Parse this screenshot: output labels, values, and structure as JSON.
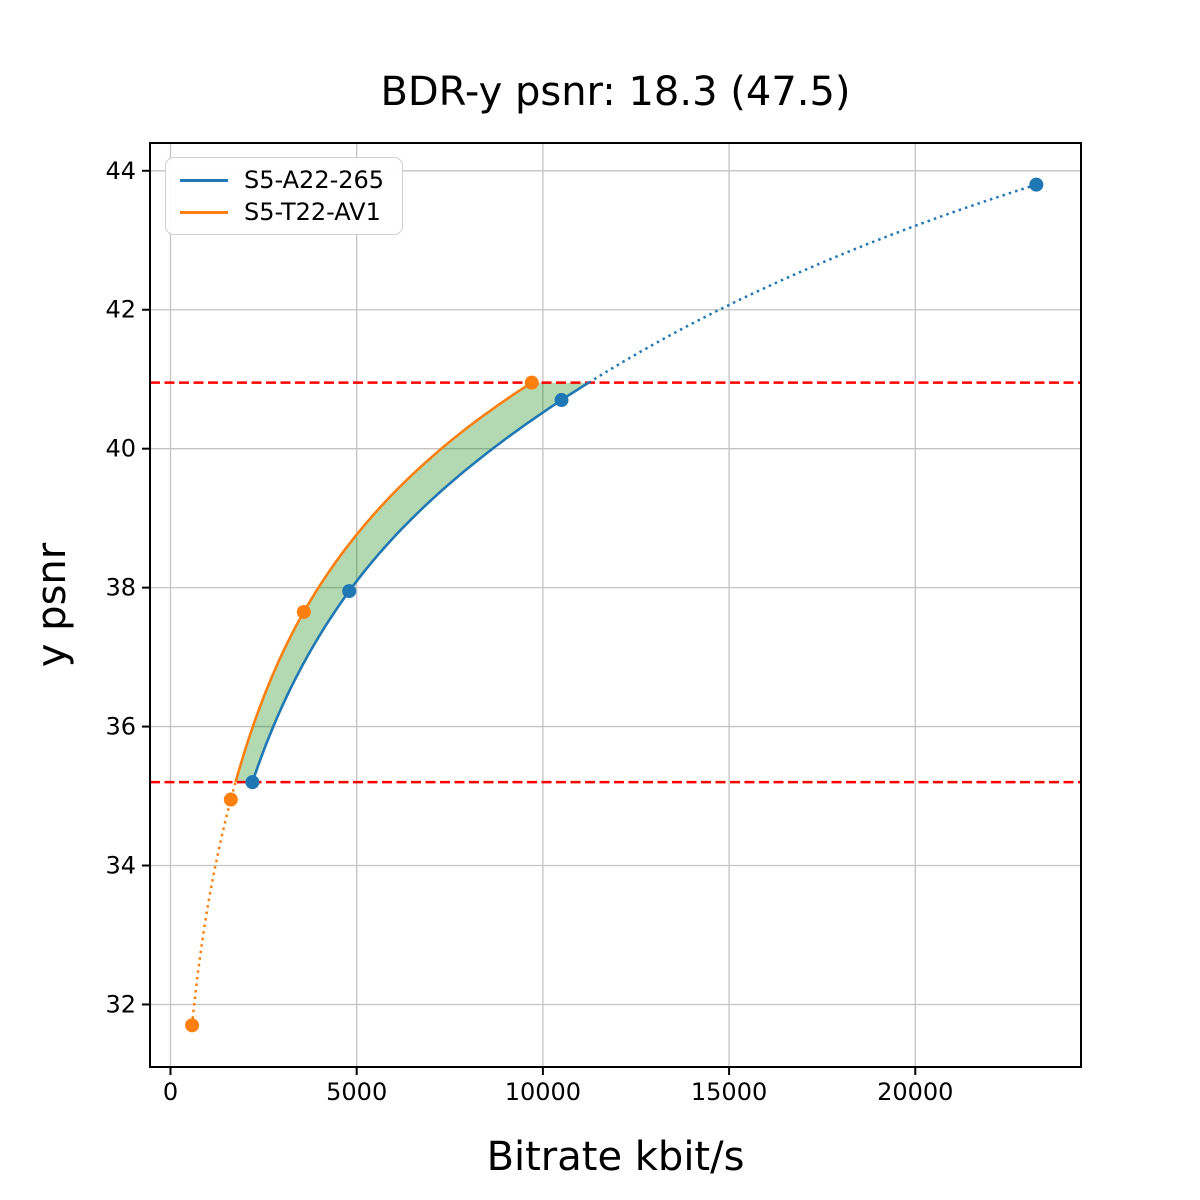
{
  "figure": {
    "title": "BDR-y psnr: 18.3 (47.5)",
    "xlabel": "Bitrate kbit/s",
    "ylabel": "y psnr"
  },
  "chart_data": {
    "type": "line",
    "title": "BDR-y psnr: 18.3 (47.5)",
    "xlabel": "Bitrate kbit/s",
    "ylabel": "y psnr",
    "xlim": [
      -550,
      24450
    ],
    "ylim": [
      31.1,
      44.4
    ],
    "x_ticks": [
      0,
      5000,
      10000,
      15000,
      20000
    ],
    "y_ticks": [
      32,
      34,
      36,
      38,
      40,
      42,
      44
    ],
    "grid": true,
    "legend_position": "upper left",
    "series": [
      {
        "name": "S5-A22-265",
        "color": "#1f77b4",
        "marker": "circle",
        "points": [
          [
            2200,
            35.2
          ],
          [
            4800,
            37.95
          ],
          [
            10500,
            40.7
          ],
          [
            23250,
            43.8
          ]
        ]
      },
      {
        "name": "S5-T22-AV1",
        "color": "#ff7f0e",
        "marker": "circle",
        "points": [
          [
            580,
            31.7
          ],
          [
            1620,
            34.95
          ],
          [
            3580,
            37.65
          ],
          [
            9700,
            40.95
          ]
        ]
      }
    ],
    "bd_interval_lines": {
      "values": [
        35.2,
        40.95
      ],
      "color": "#ff0000",
      "style": "dashed"
    },
    "fill_between": {
      "color": "#008000",
      "opacity": 0.3,
      "y_range": [
        35.2,
        40.95
      ]
    },
    "line_style_note": "solid inside BD interval, dotted outside",
    "appearance": {
      "grid_color": "#c3c3c3",
      "spine_color": "#000000",
      "tick_color": "#000000",
      "background": "#ffffff"
    }
  }
}
